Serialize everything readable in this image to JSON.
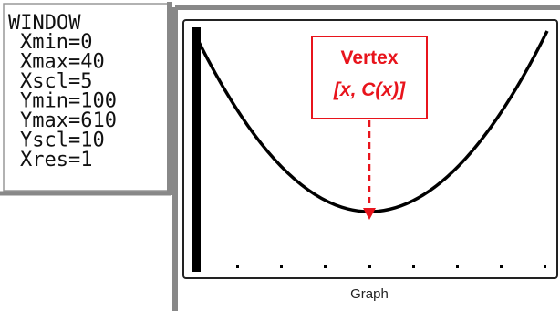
{
  "window": {
    "title": "WINDOW",
    "lines": [
      "Xmin=0",
      "Xmax=40",
      "Xscl=5",
      "Ymin=100",
      "Ymax=610",
      "Yscl=10",
      "Xres=1"
    ]
  },
  "annotation": {
    "title": "Vertex",
    "subtitle": "[x, C(x)]"
  },
  "graph": {
    "label": "Graph"
  }
}
